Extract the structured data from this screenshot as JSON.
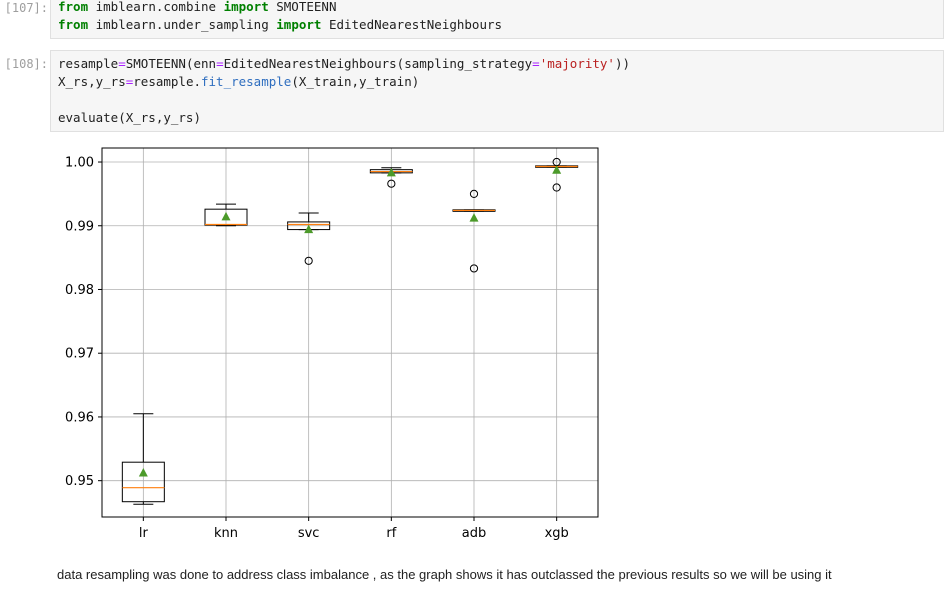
{
  "cells": {
    "c107": {
      "prompt": "[107]:",
      "lines": [
        [
          {
            "t": "from",
            "c": "kw"
          },
          {
            "t": " imblearn.combine ",
            "c": "plain"
          },
          {
            "t": "import",
            "c": "kw"
          },
          {
            "t": " SMOTEENN",
            "c": "plain"
          }
        ],
        [
          {
            "t": "from",
            "c": "kw"
          },
          {
            "t": " imblearn.under_sampling ",
            "c": "plain"
          },
          {
            "t": "import",
            "c": "kw"
          },
          {
            "t": " EditedNearestNeighbours",
            "c": "plain"
          }
        ]
      ]
    },
    "c108": {
      "prompt": "[108]:",
      "lines": [
        [
          {
            "t": "resample",
            "c": "plain"
          },
          {
            "t": "=",
            "c": "op"
          },
          {
            "t": "SMOTEENN(enn",
            "c": "plain"
          },
          {
            "t": "=",
            "c": "op"
          },
          {
            "t": "EditedNearestNeighbours(sampling_strategy",
            "c": "plain"
          },
          {
            "t": "=",
            "c": "op"
          },
          {
            "t": "'majority'",
            "c": "str"
          },
          {
            "t": "))",
            "c": "plain"
          }
        ],
        [
          {
            "t": "X_rs,y_rs",
            "c": "plain"
          },
          {
            "t": "=",
            "c": "op"
          },
          {
            "t": "resample.",
            "c": "plain"
          },
          {
            "t": "fit_resample",
            "c": "fn"
          },
          {
            "t": "(X_train,y_train)",
            "c": "plain"
          }
        ],
        [],
        [
          {
            "t": "evaluate(X_rs,y_rs)",
            "c": "plain"
          }
        ]
      ]
    }
  },
  "markdown_text": "data resampling was done to address class imbalance , as the graph shows it has outclassed the previous results so we will be using it",
  "chart_data": {
    "type": "box",
    "categories": [
      "lr",
      "knn",
      "svc",
      "rf",
      "adb",
      "xgb"
    ],
    "ylim": [
      0.9443,
      1.0022
    ],
    "yticks": [
      0.95,
      0.96,
      0.97,
      0.98,
      0.99,
      1.0
    ],
    "ytick_labels": [
      "0.95",
      "0.96",
      "0.97",
      "0.98",
      "0.99",
      "1.00"
    ],
    "grid": true,
    "colors": {
      "box": "#000000",
      "median": "#ff7f0e",
      "mean": "#4c9a2a",
      "grid": "#b0b0b0"
    },
    "boxes": [
      {
        "name": "lr",
        "whislo": 0.9463,
        "q1": 0.9467,
        "med": 0.9489,
        "q3": 0.9529,
        "whishi": 0.9605,
        "mean": 0.9512,
        "fliers": []
      },
      {
        "name": "knn",
        "whislo": 0.99,
        "q1": 0.9901,
        "med": 0.9902,
        "q3": 0.9926,
        "whishi": 0.9934,
        "mean": 0.9914,
        "fliers": []
      },
      {
        "name": "svc",
        "whislo": 0.9894,
        "q1": 0.9894,
        "med": 0.9902,
        "q3": 0.9906,
        "whishi": 0.992,
        "mean": 0.9894,
        "fliers": [
          0.9845
        ]
      },
      {
        "name": "rf",
        "whislo": 0.9983,
        "q1": 0.9983,
        "med": 0.9985,
        "q3": 0.9988,
        "whishi": 0.9991,
        "mean": 0.9983,
        "fliers": [
          0.9966
        ]
      },
      {
        "name": "adb",
        "whislo": 0.9923,
        "q1": 0.9923,
        "med": 0.9924,
        "q3": 0.9925,
        "whishi": 0.9925,
        "mean": 0.9912,
        "fliers": [
          0.995,
          0.9833
        ]
      },
      {
        "name": "xgb",
        "whislo": 0.9992,
        "q1": 0.9992,
        "med": 0.9993,
        "q3": 0.9994,
        "whishi": 0.9994,
        "mean": 0.9987,
        "fliers": [
          1.0,
          0.996
        ]
      }
    ]
  }
}
